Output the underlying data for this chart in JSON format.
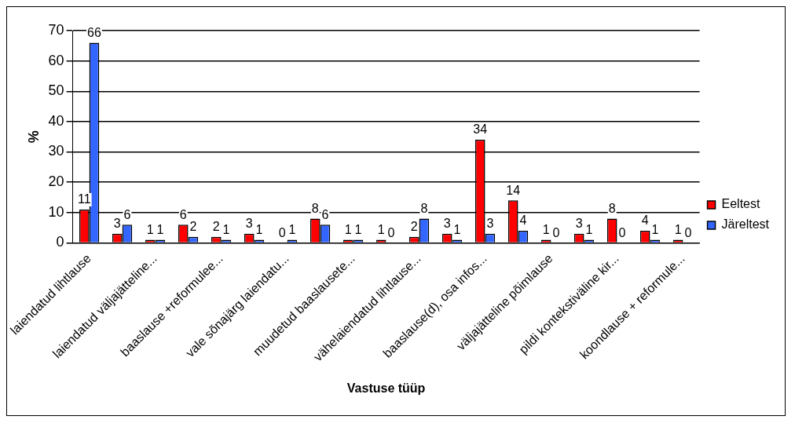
{
  "chart_data": {
    "type": "bar",
    "xlabel": "Vastuse tüüp",
    "ylabel": "%",
    "categories": [
      "laiendatud lihtlause",
      null,
      "laiendatud väljajätteline...",
      null,
      "baaslause +reformulee...",
      null,
      "vale sõnajärg laiendatu...",
      null,
      "muudetud baaslausete...",
      null,
      "vähelaiendatud lihtlause...",
      null,
      "baaslause(d), osa infos...",
      null,
      "väljajätteline põimlause",
      null,
      "pildi kontekstiväline kir...",
      null,
      "koondlause + reformule..."
    ],
    "series": [
      {
        "name": "Eeltest",
        "color": "#ff0000",
        "values": [
          11,
          3,
          1,
          6,
          2,
          3,
          0,
          8,
          1,
          1,
          2,
          3,
          34,
          14,
          1,
          3,
          8,
          4,
          1
        ]
      },
      {
        "name": "Järeltest",
        "color": "#3366ff",
        "values": [
          66,
          6,
          1,
          2,
          1,
          1,
          1,
          6,
          1,
          0,
          8,
          1,
          3,
          4,
          0,
          1,
          0,
          1,
          0
        ]
      }
    ],
    "ylim": [
      0,
      70
    ],
    "yticks": [
      0,
      10,
      20,
      30,
      40,
      50,
      60,
      70
    ],
    "grid": "y",
    "legend": "right",
    "data_labels": true
  }
}
